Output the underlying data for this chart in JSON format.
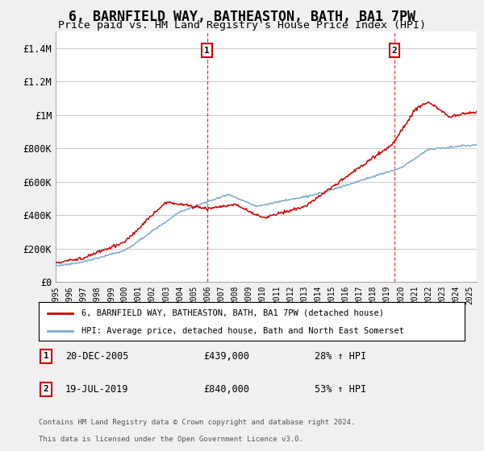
{
  "title": "6, BARNFIELD WAY, BATHEASTON, BATH, BA1 7PW",
  "subtitle": "Price paid vs. HM Land Registry's House Price Index (HPI)",
  "title_fontsize": 12,
  "subtitle_fontsize": 9.5,
  "background_color": "#f0f0f0",
  "plot_bg_color": "#ffffff",
  "grid_color": "#cccccc",
  "ylim": [
    0,
    1500000
  ],
  "yticks": [
    0,
    200000,
    400000,
    600000,
    800000,
    1000000,
    1200000,
    1400000
  ],
  "ytick_labels": [
    "£0",
    "£200K",
    "£400K",
    "£600K",
    "£800K",
    "£1M",
    "£1.2M",
    "£1.4M"
  ],
  "sale1_date": "20-DEC-2005",
  "sale1_price": "£439,000",
  "sale1_pct": "28%",
  "sale1_x": 2005.97,
  "sale2_date": "19-JUL-2019",
  "sale2_price": "£840,000",
  "sale2_pct": "53%",
  "sale2_x": 2019.54,
  "house_line_color": "#cc0000",
  "hpi_line_color": "#7aabcc",
  "legend_house_label": "6, BARNFIELD WAY, BATHEASTON, BATH, BA1 7PW (detached house)",
  "legend_hpi_label": "HPI: Average price, detached house, Bath and North East Somerset",
  "footer1": "Contains HM Land Registry data © Crown copyright and database right 2024.",
  "footer2": "This data is licensed under the Open Government Licence v3.0.",
  "xmin": 1995.0,
  "xmax": 2025.5
}
